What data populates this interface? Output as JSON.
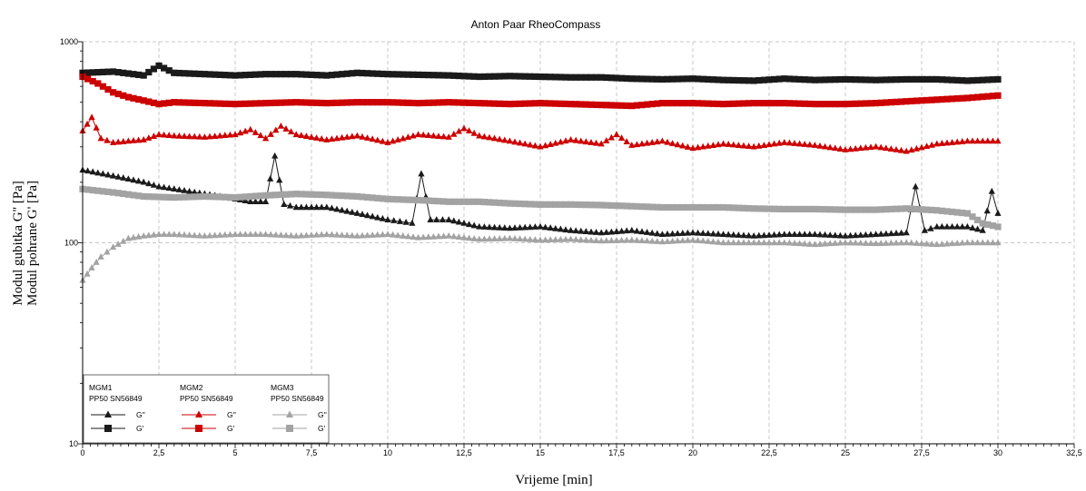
{
  "chart_data": {
    "type": "line",
    "title": "Anton Paar RheoCompass",
    "xlabel": "Vrijeme [min]",
    "ylabel_lines": [
      "Modul gubitka G'' [Pa]",
      "Modul pohrane G' [Pa]"
    ],
    "y_scale": "log",
    "xlim": [
      0,
      32.5
    ],
    "ylim": [
      10,
      1000
    ],
    "x_ticks": [
      "0",
      "2,5",
      "5",
      "7,5",
      "10",
      "12,5",
      "15",
      "17,5",
      "20",
      "22,5",
      "25",
      "27,5",
      "30",
      "32,5"
    ],
    "y_ticks": [
      "10",
      "100",
      "1000"
    ],
    "grid": true,
    "legend_position": "bottom-left",
    "legend": [
      {
        "group": "MGM1",
        "device": "PP50 SN56849",
        "color": "#1a1a1a",
        "items": [
          {
            "marker": "triangle",
            "label": "G''"
          },
          {
            "marker": "square",
            "label": "G'"
          }
        ]
      },
      {
        "group": "MGM2",
        "device": "PP50 SN56849",
        "color": "#cc0000",
        "items": [
          {
            "marker": "triangle",
            "label": "G''"
          },
          {
            "marker": "square",
            "label": "G'"
          }
        ]
      },
      {
        "group": "MGM3",
        "device": "PP50 SN56849",
        "color": "#a3a3a3",
        "items": [
          {
            "marker": "triangle",
            "label": "G''"
          },
          {
            "marker": "square",
            "label": "G'"
          }
        ]
      }
    ],
    "series": [
      {
        "group": "MGM1",
        "modulus": "G'",
        "marker": "square",
        "color": "#1a1a1a",
        "x": [
          0,
          1,
          2,
          2.5,
          3,
          4,
          5,
          6,
          7,
          8,
          9,
          10,
          11,
          12,
          13,
          14,
          15,
          16,
          17,
          18,
          19,
          20,
          21,
          22,
          23,
          24,
          25,
          26,
          27,
          28,
          29,
          30
        ],
        "y": [
          700,
          710,
          680,
          760,
          700,
          690,
          680,
          690,
          690,
          680,
          700,
          690,
          685,
          680,
          670,
          675,
          670,
          665,
          665,
          655,
          650,
          655,
          645,
          640,
          655,
          645,
          650,
          645,
          650,
          650,
          640,
          650
        ]
      },
      {
        "group": "MGM2",
        "modulus": "G'",
        "marker": "square",
        "color": "#cc0000",
        "x": [
          0,
          0.5,
          1,
          1.5,
          2,
          2.5,
          3,
          4,
          5,
          6,
          7,
          8,
          9,
          10,
          11,
          12,
          13,
          14,
          15,
          16,
          17,
          18,
          19,
          20,
          21,
          22,
          23,
          24,
          25,
          26,
          27,
          28,
          29,
          30
        ],
        "y": [
          670,
          620,
          560,
          530,
          510,
          490,
          500,
          495,
          490,
          495,
          500,
          495,
          500,
          500,
          495,
          500,
          495,
          490,
          495,
          490,
          485,
          480,
          495,
          495,
          490,
          495,
          495,
          490,
          490,
          495,
          505,
          515,
          525,
          540
        ]
      },
      {
        "group": "MGM2",
        "modulus": "G''",
        "marker": "triangle",
        "color": "#cc0000",
        "x": [
          0,
          0.3,
          0.6,
          1,
          1.5,
          2,
          2.5,
          3,
          4,
          5,
          5.5,
          6,
          6.5,
          7,
          8,
          9,
          10,
          11,
          12,
          12.5,
          13,
          14,
          15,
          16,
          17,
          17.5,
          18,
          19,
          20,
          21,
          22,
          23,
          24,
          25,
          26,
          27,
          28,
          29,
          30
        ],
        "y": [
          360,
          420,
          330,
          315,
          320,
          325,
          345,
          340,
          335,
          345,
          365,
          330,
          380,
          345,
          325,
          340,
          315,
          345,
          335,
          370,
          340,
          320,
          300,
          325,
          310,
          345,
          305,
          320,
          295,
          310,
          300,
          315,
          305,
          290,
          300,
          285,
          310,
          320,
          320
        ]
      },
      {
        "group": "MGM1",
        "modulus": "G''",
        "marker": "triangle",
        "color": "#1a1a1a",
        "x": [
          0,
          1,
          2,
          2.5,
          3,
          4,
          5,
          5.5,
          6,
          6.3,
          6.6,
          7,
          8,
          9,
          10,
          10.8,
          11.1,
          11.4,
          12,
          13,
          14,
          15,
          16,
          17,
          18,
          19,
          20,
          21,
          22,
          23,
          24,
          25,
          26,
          27,
          27.3,
          27.6,
          28,
          29,
          29.5,
          29.8,
          30
        ],
        "y": [
          230,
          215,
          200,
          190,
          185,
          175,
          165,
          160,
          160,
          270,
          155,
          150,
          150,
          140,
          130,
          125,
          220,
          130,
          130,
          120,
          118,
          120,
          115,
          112,
          115,
          110,
          112,
          110,
          108,
          110,
          110,
          108,
          110,
          112,
          190,
          115,
          120,
          120,
          115,
          180,
          140
        ]
      },
      {
        "group": "MGM3",
        "modulus": "G'",
        "marker": "square",
        "color": "#a3a3a3",
        "x": [
          0,
          1,
          2,
          3,
          4,
          5,
          6,
          7,
          8,
          9,
          10,
          11,
          12,
          13,
          14,
          15,
          16,
          17,
          18,
          19,
          20,
          21,
          22,
          23,
          24,
          25,
          26,
          27,
          28,
          29,
          29.5,
          30
        ],
        "y": [
          185,
          178,
          170,
          168,
          170,
          168,
          172,
          175,
          173,
          170,
          165,
          163,
          160,
          160,
          157,
          155,
          155,
          154,
          152,
          150,
          150,
          150,
          148,
          147,
          147,
          146,
          146,
          148,
          145,
          140,
          125,
          120
        ]
      },
      {
        "group": "MGM3",
        "modulus": "G''",
        "marker": "triangle",
        "color": "#a3a3a3",
        "x": [
          0,
          0.3,
          0.6,
          1,
          1.5,
          2,
          2.5,
          3,
          4,
          5,
          6,
          7,
          8,
          9,
          10,
          11,
          12,
          13,
          14,
          15,
          16,
          17,
          18,
          19,
          20,
          21,
          22,
          23,
          24,
          25,
          26,
          27,
          28,
          29,
          30
        ],
        "y": [
          65,
          75,
          85,
          95,
          105,
          108,
          110,
          110,
          108,
          110,
          110,
          108,
          110,
          108,
          110,
          106,
          108,
          104,
          105,
          103,
          104,
          102,
          103,
          101,
          103,
          100,
          100,
          100,
          98,
          100,
          99,
          100,
          98,
          100,
          100
        ]
      }
    ]
  }
}
